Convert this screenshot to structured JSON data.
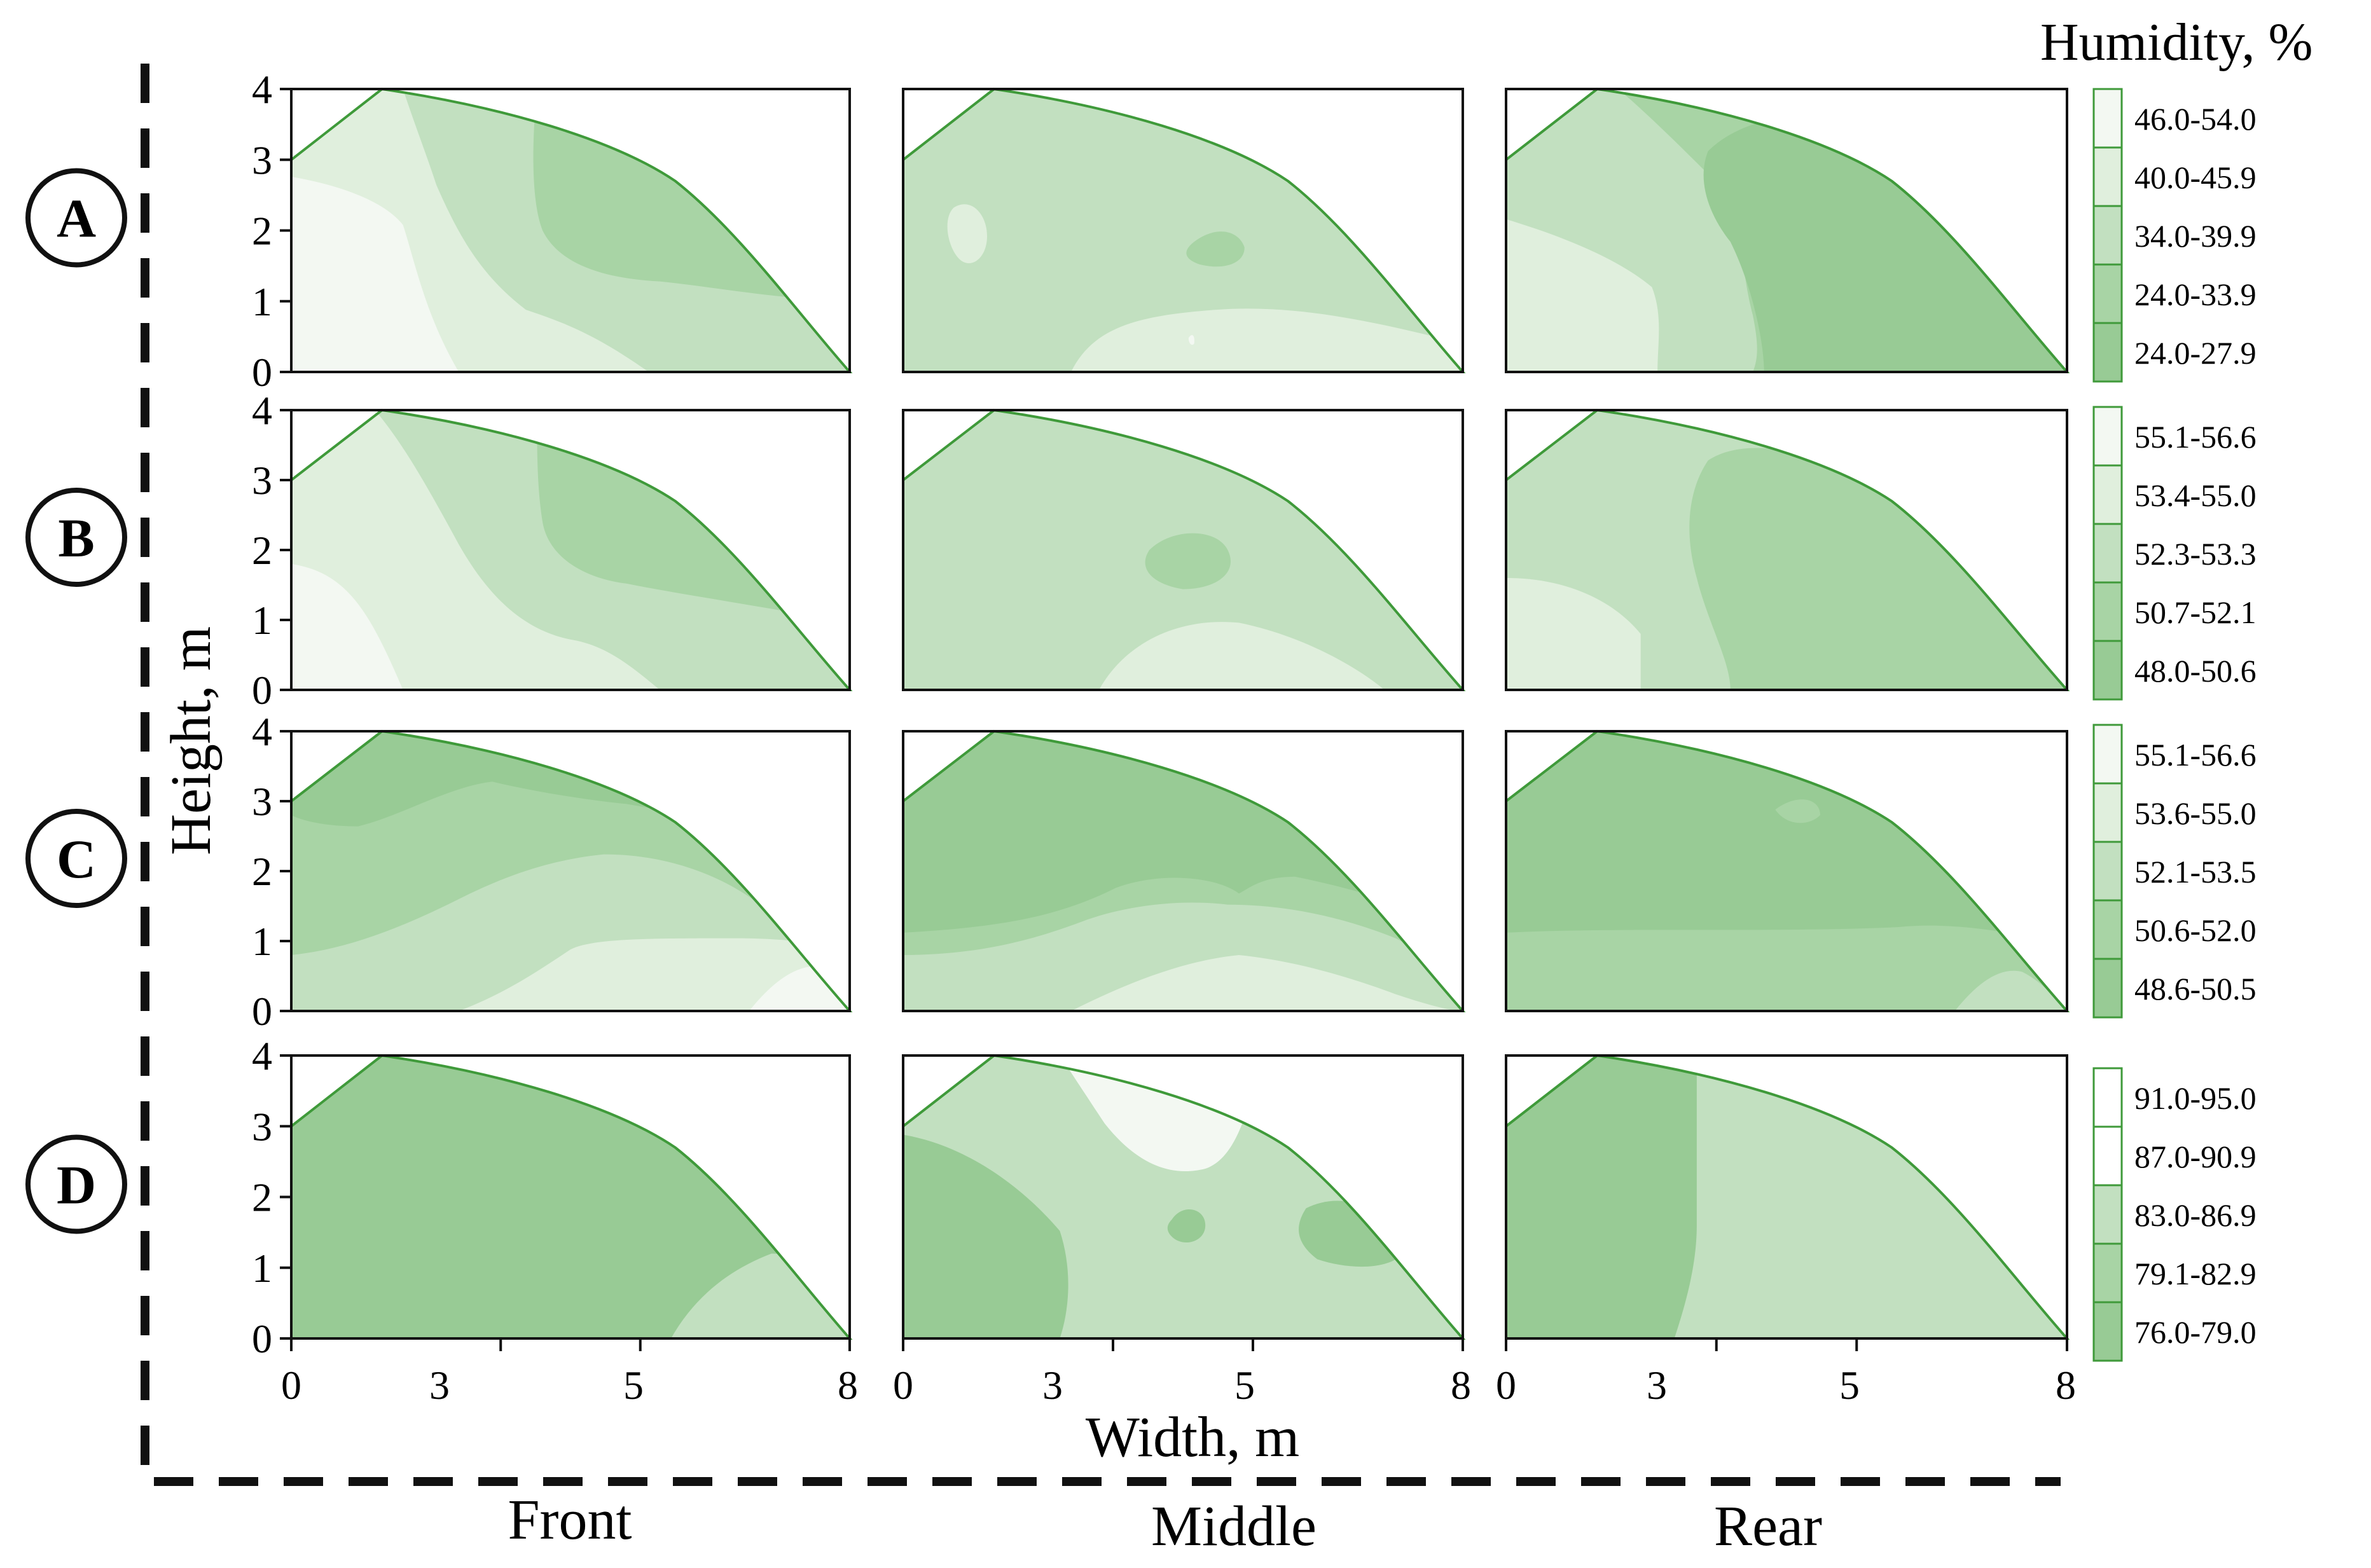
{
  "chart_data": {
    "type": "heatmap",
    "title": "Humidity, %",
    "xlabel": "Width, m",
    "ylabel": "Height, m",
    "x_ticks": [
      0,
      3,
      5,
      8
    ],
    "y_ticks": [
      0,
      1,
      2,
      3,
      4
    ],
    "xlim": [
      0,
      8
    ],
    "ylim": [
      0,
      4
    ],
    "roof_profile_m": [
      [
        0,
        3
      ],
      [
        1.3,
        4
      ],
      [
        3.5,
        3.5
      ],
      [
        5.5,
        2.7
      ],
      [
        8,
        0
      ]
    ],
    "columns": [
      "Front",
      "Middle",
      "Rear"
    ],
    "rows": [
      {
        "label": "A",
        "legend": [
          "46.0-54.0",
          "40.0-45.9",
          "34.0-39.9",
          "24.0-33.9",
          "24.0-27.9"
        ]
      },
      {
        "label": "B",
        "legend": [
          "55.1-56.6",
          "53.4-55.0",
          "52.3-53.3",
          "50.7-52.1",
          "48.0-50.6"
        ]
      },
      {
        "label": "C",
        "legend": [
          "55.1-56.6",
          "53.6-55.0",
          "52.1-53.5",
          "50.6-52.0",
          "48.6-50.5"
        ]
      },
      {
        "label": "D",
        "legend": [
          "91.0-95.0",
          "87.0-90.9",
          "83.0-86.9",
          "79.1-82.9",
          "76.0-79.0"
        ]
      }
    ],
    "level_colors": [
      "#f3f8f2",
      "#e0efdd",
      "#c2e0c0",
      "#a8d4a5",
      "#98cb95"
    ],
    "white": "#ffffff",
    "outline_color": "#3f9a3a"
  }
}
